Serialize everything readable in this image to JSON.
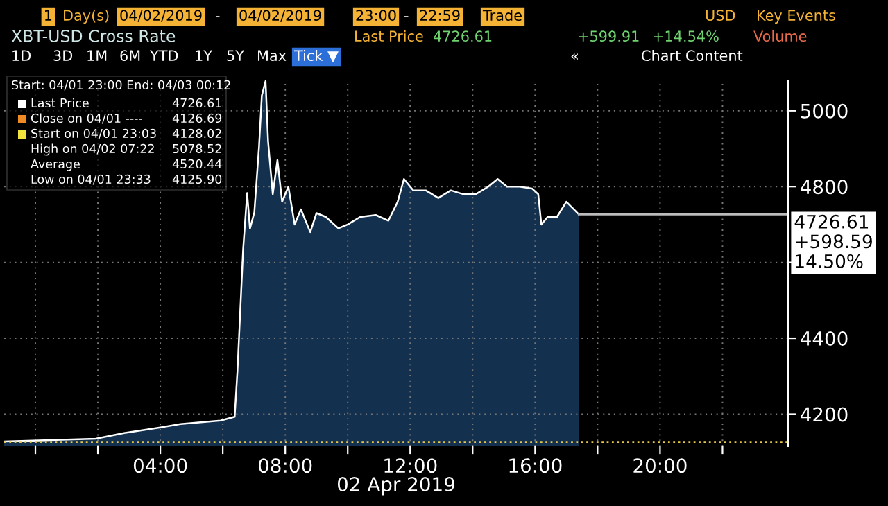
{
  "chart_data": {
    "type": "area",
    "title": "XBT-USD Cross Rate",
    "xlabel": "02 Apr 2019",
    "x": [
      -1.0,
      1.93,
      2.84,
      3.93,
      4.65,
      5.93,
      6.38,
      6.47,
      6.56,
      6.65,
      6.78,
      6.87,
      7.01,
      7.16,
      7.25,
      7.37,
      7.45,
      7.6,
      7.75,
      7.9,
      8.1,
      8.3,
      8.5,
      8.8,
      9.0,
      9.3,
      9.7,
      10.0,
      10.4,
      10.9,
      11.3,
      11.6,
      11.8,
      12.1,
      12.5,
      12.9,
      13.3,
      13.7,
      14.1,
      14.5,
      14.8,
      15.1,
      15.5,
      15.9,
      16.1,
      16.2,
      16.4,
      16.7,
      17.0,
      17.4
    ],
    "series": [
      {
        "color": "#14304f",
        "values": [
          4128,
          4135,
          4150,
          4164,
          4174,
          4183,
          4193,
          4315,
          4473,
          4632,
          4783,
          4689,
          4732,
          4905,
          5040,
          5078,
          4920,
          4780,
          4870,
          4760,
          4800,
          4700,
          4740,
          4680,
          4730,
          4720,
          4690,
          4700,
          4720,
          4725,
          4710,
          4760,
          4820,
          4790,
          4790,
          4770,
          4790,
          4780,
          4780,
          4800,
          4820,
          4800,
          4800,
          4795,
          4780,
          4700,
          4720,
          4720,
          4760,
          4727
        ]
      }
    ],
    "xlim": [
      -1,
      24.1
    ],
    "ylim": [
      4115,
      5080
    ],
    "xticks": [
      {
        "value": 0,
        "label": null
      },
      {
        "value": 2,
        "label": null
      },
      {
        "value": 4,
        "label": "04:00"
      },
      {
        "value": 6,
        "label": null
      },
      {
        "value": 8,
        "label": "08:00"
      },
      {
        "value": 10,
        "label": null
      },
      {
        "value": 12,
        "label": "12:00"
      },
      {
        "value": 14,
        "label": null
      },
      {
        "value": 16,
        "label": "16:00"
      },
      {
        "value": 18,
        "label": null
      },
      {
        "value": 20,
        "label": "20:00"
      },
      {
        "value": 22,
        "label": null
      }
    ],
    "yticks": [
      4200,
      4400,
      {
        "value": 4600,
        "label": null
      },
      4800,
      5000
    ],
    "grid": true,
    "line_style": "solid",
    "ref_lines": [
      {
        "axis": "y",
        "value": 4726.61,
        "label": "4726.61\n+598.59\n14.50%",
        "color": "#bbbbbb",
        "line_style": "solid"
      },
      {
        "axis": "y",
        "value": 4126.69,
        "color": "#e8c84a",
        "line_style": "dotted"
      }
    ],
    "annotations": [
      "Start: 04/01 23:00 End: 04/03 00:12",
      "Last Price",
      "4726.61",
      "Close on 04/01 ----",
      "4126.69",
      "Start on 04/01 23:03",
      "4128.02",
      "High on 04/02 07:22",
      "5078.52",
      "Average",
      "4520.44",
      "Low on 04/01 23:33",
      "4125.90",
      "1",
      "Day(s)",
      "04/02/2019",
      "-",
      "04/02/2019",
      "23:00",
      "-",
      "22:59",
      "Trade",
      "USD",
      "Key Events",
      "Last Price",
      "4726.61",
      "+599.91",
      "+14.54%",
      "Volume",
      "1D",
      "3D",
      "1M",
      "6M",
      "YTD",
      "1Y",
      "5Y",
      "Max",
      "Tick ▼",
      "«",
      "Chart Content"
    ]
  }
}
